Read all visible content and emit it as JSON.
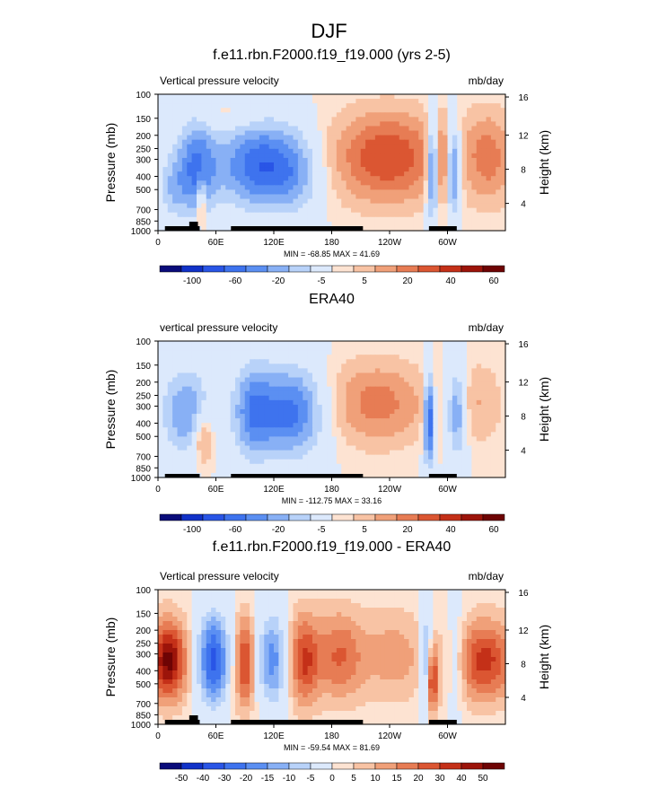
{
  "page_title": "DJF",
  "colors": {
    "palette_diverging": [
      "#0a0c7a",
      "#1132c8",
      "#2955e6",
      "#3e73ee",
      "#5b8ff2",
      "#88b0f5",
      "#b8d2f9",
      "#dce9fc",
      "#fde3d2",
      "#f8c3a4",
      "#f0a079",
      "#e77c54",
      "#db5632",
      "#c43018",
      "#9c140a",
      "#6e0404"
    ],
    "land_bar": "#000000"
  },
  "chart_data": [
    {
      "type": "heatmap",
      "title": "f.e11.rbn.F2000.f19_f19.000 (yrs 2-5)",
      "left_label": "Vertical pressure velocity",
      "right_label": "mb/day",
      "ylabel": "Pressure (mb)",
      "ylabel_right": "Height (km)",
      "x_ticks": [
        "0",
        "60E",
        "120E",
        "180",
        "120W",
        "60W"
      ],
      "y_ticks": [
        "100",
        "150",
        "200",
        "250",
        "300",
        "400",
        "500",
        "700",
        "850",
        "1000"
      ],
      "y_right_ticks": [
        "16",
        "12",
        "8",
        "4"
      ],
      "stats": "MIN = -68.85  MAX = 41.69",
      "colorbar_labels": [
        "-100",
        "-60",
        "-20",
        "-5",
        "5",
        "20",
        "40",
        "60"
      ],
      "xlim": [
        0,
        360
      ],
      "ylim": [
        1000,
        100
      ],
      "y_scale": "log"
    },
    {
      "type": "heatmap",
      "title": "ERA40",
      "left_label": "vertical pressure velocity",
      "right_label": "mb/day",
      "ylabel": "Pressure (mb)",
      "ylabel_right": "Height (km)",
      "x_ticks": [
        "0",
        "60E",
        "120E",
        "180",
        "120W",
        "60W"
      ],
      "y_ticks": [
        "100",
        "150",
        "200",
        "250",
        "300",
        "400",
        "500",
        "700",
        "850",
        "1000"
      ],
      "y_right_ticks": [
        "16",
        "12",
        "8",
        "4"
      ],
      "stats": "MIN = -112.75  MAX = 33.16",
      "colorbar_labels": [
        "-100",
        "-60",
        "-20",
        "-5",
        "5",
        "20",
        "40",
        "60"
      ],
      "xlim": [
        0,
        360
      ],
      "ylim": [
        1000,
        100
      ],
      "y_scale": "log"
    },
    {
      "type": "heatmap",
      "title": "f.e11.rbn.F2000.f19_f19.000 - ERA40",
      "left_label": "Vertical pressure velocity",
      "right_label": "mb/day",
      "ylabel": "Pressure (mb)",
      "ylabel_right": "Height (km)",
      "x_ticks": [
        "0",
        "60E",
        "120E",
        "180",
        "120W",
        "60W"
      ],
      "y_ticks": [
        "100",
        "150",
        "200",
        "250",
        "300",
        "400",
        "500",
        "700",
        "850",
        "1000"
      ],
      "y_right_ticks": [
        "16",
        "12",
        "8",
        "4"
      ],
      "stats": "MIN = -59.54  MAX = 81.69",
      "colorbar_labels": [
        "-50",
        "-40",
        "-30",
        "-20",
        "-15",
        "-10",
        "-5",
        "0",
        "5",
        "10",
        "15",
        "20",
        "30",
        "40",
        "50"
      ],
      "xlim": [
        0,
        360
      ],
      "ylim": [
        1000,
        100
      ],
      "y_scale": "log"
    }
  ]
}
